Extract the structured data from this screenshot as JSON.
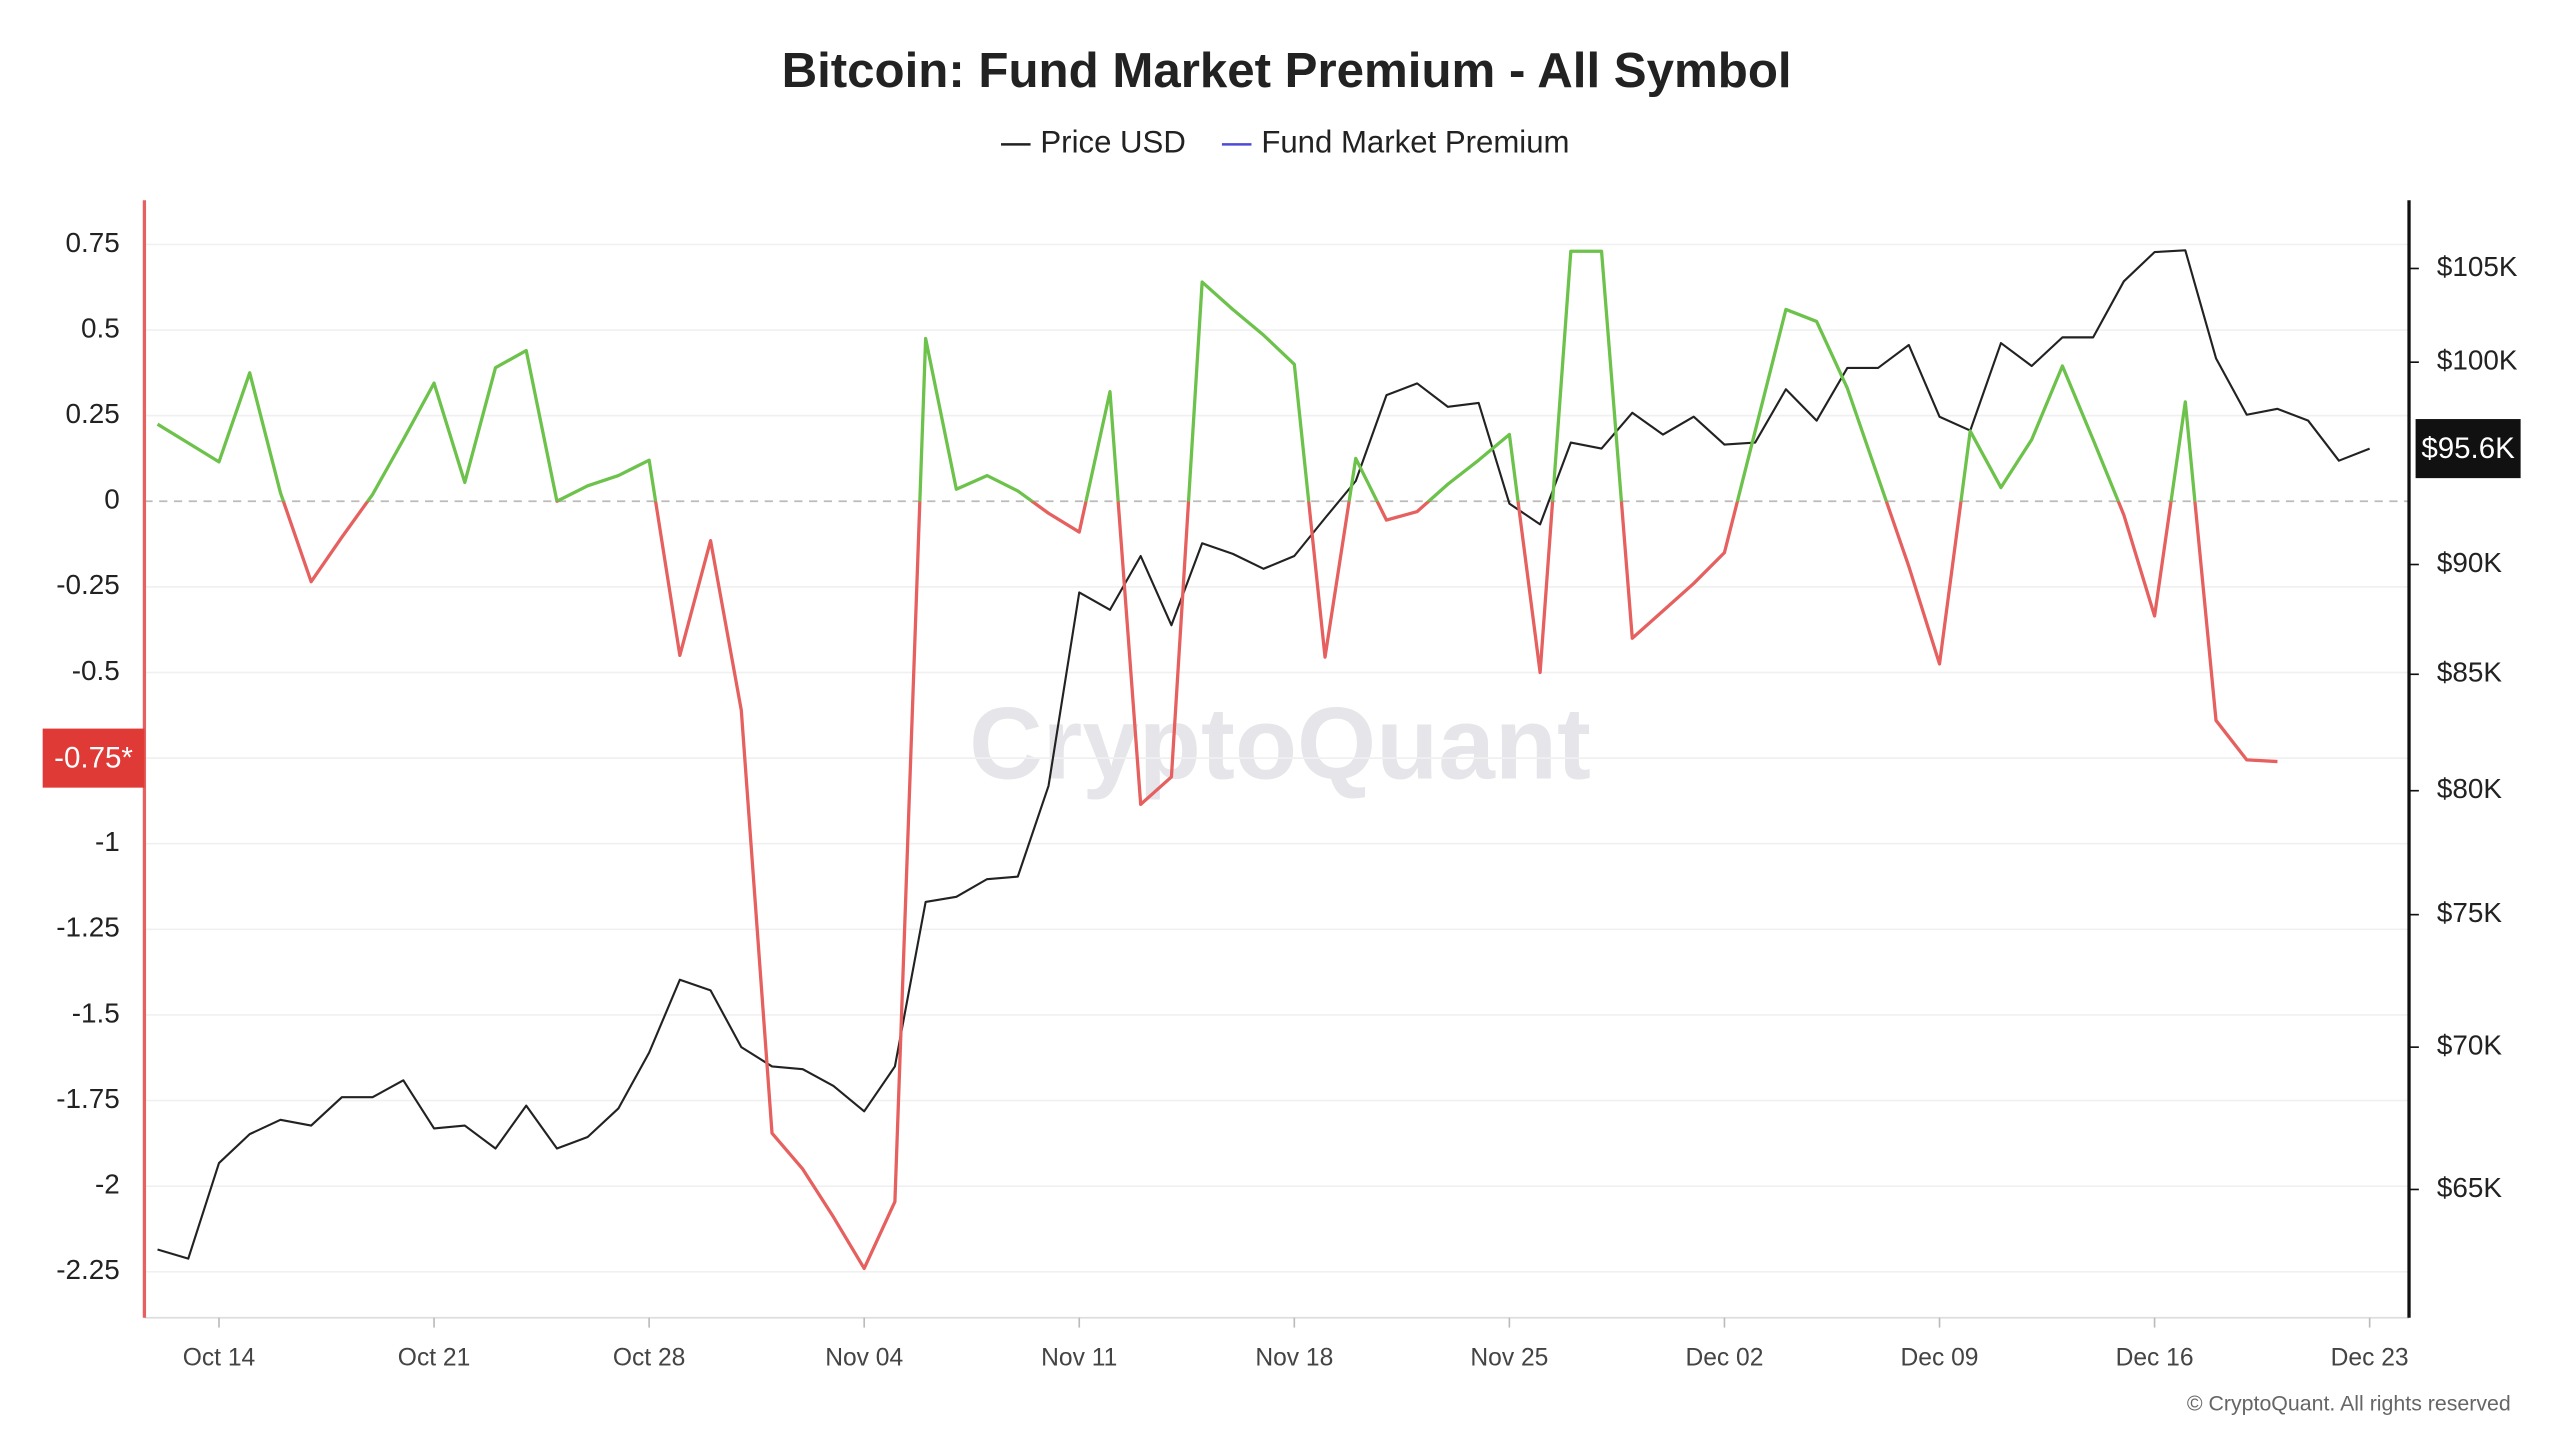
{
  "chart_data": {
    "type": "line",
    "title": "Bitcoin: Fund Market Premium - All Symbol",
    "watermark": "CryptoQuant",
    "footer": "© CryptoQuant. All rights reserved",
    "x": [
      "Oct 12",
      "Oct 13",
      "Oct 14",
      "Oct 15",
      "Oct 16",
      "Oct 17",
      "Oct 18",
      "Oct 19",
      "Oct 20",
      "Oct 21",
      "Oct 22",
      "Oct 23",
      "Oct 24",
      "Oct 25",
      "Oct 26",
      "Oct 27",
      "Oct 28",
      "Oct 29",
      "Oct 30",
      "Oct 31",
      "Nov 01",
      "Nov 02",
      "Nov 03",
      "Nov 04",
      "Nov 05",
      "Nov 06",
      "Nov 07",
      "Nov 08",
      "Nov 09",
      "Nov 10",
      "Nov 11",
      "Nov 12",
      "Nov 13",
      "Nov 14",
      "Nov 15",
      "Nov 16",
      "Nov 17",
      "Nov 18",
      "Nov 19",
      "Nov 20",
      "Nov 21",
      "Nov 22",
      "Nov 23",
      "Nov 24",
      "Nov 25",
      "Nov 26",
      "Nov 27",
      "Nov 28",
      "Nov 29",
      "Nov 30",
      "Dec 01",
      "Dec 02",
      "Dec 03",
      "Dec 04",
      "Dec 05",
      "Dec 06",
      "Dec 07",
      "Dec 08",
      "Dec 09",
      "Dec 10",
      "Dec 11",
      "Dec 12",
      "Dec 13",
      "Dec 14",
      "Dec 15",
      "Dec 16",
      "Dec 17",
      "Dec 18",
      "Dec 19",
      "Dec 20",
      "Dec 21",
      "Dec 22",
      "Dec 23"
    ],
    "xticks": [
      "Oct 14",
      "Oct 21",
      "Oct 28",
      "Nov 04",
      "Nov 11",
      "Nov 18",
      "Nov 25",
      "Dec 02",
      "Dec 09",
      "Dec 16",
      "Dec 23"
    ],
    "series": [
      {
        "name": "Price USD",
        "color": "#222222",
        "axis": "y2",
        "values": [
          63000,
          62700,
          65900,
          66900,
          67400,
          67200,
          68200,
          68200,
          68800,
          67100,
          67200,
          66400,
          67900,
          66400,
          66800,
          67800,
          69800,
          72500,
          72100,
          70000,
          69300,
          69200,
          68600,
          67700,
          69300,
          75500,
          75700,
          76400,
          76500,
          80200,
          88700,
          87900,
          90400,
          87200,
          91000,
          90500,
          89800,
          90400,
          92200,
          94000,
          98300,
          98900,
          97700,
          97900,
          92900,
          91900,
          95900,
          95600,
          97400,
          96300,
          97200,
          95800,
          95900,
          98600,
          97000,
          99700,
          99700,
          100900,
          97200,
          96500,
          101000,
          99800,
          101300,
          101300,
          104300,
          105900,
          106000,
          100200,
          97300,
          97600,
          97000,
          95000,
          95600
        ]
      },
      {
        "name": "Fund Market Premium",
        "color": "#4b4bd8",
        "axis": "y",
        "positive_color": "#6cc24a",
        "negative_color": "#e5605e",
        "values": [
          0.225,
          0.17,
          0.115,
          0.375,
          0.025,
          -0.235,
          -0.105,
          0.02,
          0.18,
          0.345,
          0.055,
          0.39,
          0.44,
          0.0,
          0.045,
          0.075,
          0.12,
          -0.45,
          -0.115,
          -0.61,
          -1.845,
          -1.95,
          -2.09,
          -2.24,
          -2.045,
          0.475,
          0.035,
          0.075,
          0.03,
          -0.035,
          -0.09,
          0.32,
          -0.885,
          -0.805,
          0.64,
          0.56,
          0.485,
          0.4,
          -0.455,
          0.125,
          -0.055,
          -0.03,
          0.05,
          0.12,
          0.195,
          -0.5,
          0.73,
          0.73,
          -0.4,
          -0.32,
          -0.24,
          -0.15,
          0.205,
          0.56,
          0.525,
          0.33,
          0.07,
          -0.19,
          -0.475,
          0.205,
          0.04,
          0.18,
          0.395,
          0.18,
          -0.04,
          -0.335,
          0.29,
          -0.64,
          -0.755,
          -0.76,
          null,
          null,
          null
        ]
      }
    ],
    "ylim": [
      -2.384,
      0.879
    ],
    "yticks": [
      0.75,
      0.5,
      0.25,
      0,
      -0.25,
      -0.5,
      -0.75,
      -1,
      -1.25,
      -1.5,
      -1.75,
      -2,
      -2.25
    ],
    "y2lim": [
      60800,
      108800
    ],
    "y2_scale": "log",
    "y2ticks": [
      {
        "value": 105000,
        "label": "$105K"
      },
      {
        "value": 100000,
        "label": "$100K"
      },
      {
        "value": 90000,
        "label": "$90K"
      },
      {
        "value": 85000,
        "label": "$85K"
      },
      {
        "value": 80000,
        "label": "$80K"
      },
      {
        "value": 75000,
        "label": "$75K"
      },
      {
        "value": 70000,
        "label": "$70K"
      },
      {
        "value": 65000,
        "label": "$65K"
      }
    ],
    "grid": true,
    "legend": "top",
    "annotations": [
      {
        "text": "-0.75*",
        "axis": "y",
        "value": -0.75,
        "color": "#e03a36"
      },
      {
        "text": "$95.6K",
        "axis": "y2",
        "value": 95600,
        "color": "#111111"
      }
    ]
  }
}
